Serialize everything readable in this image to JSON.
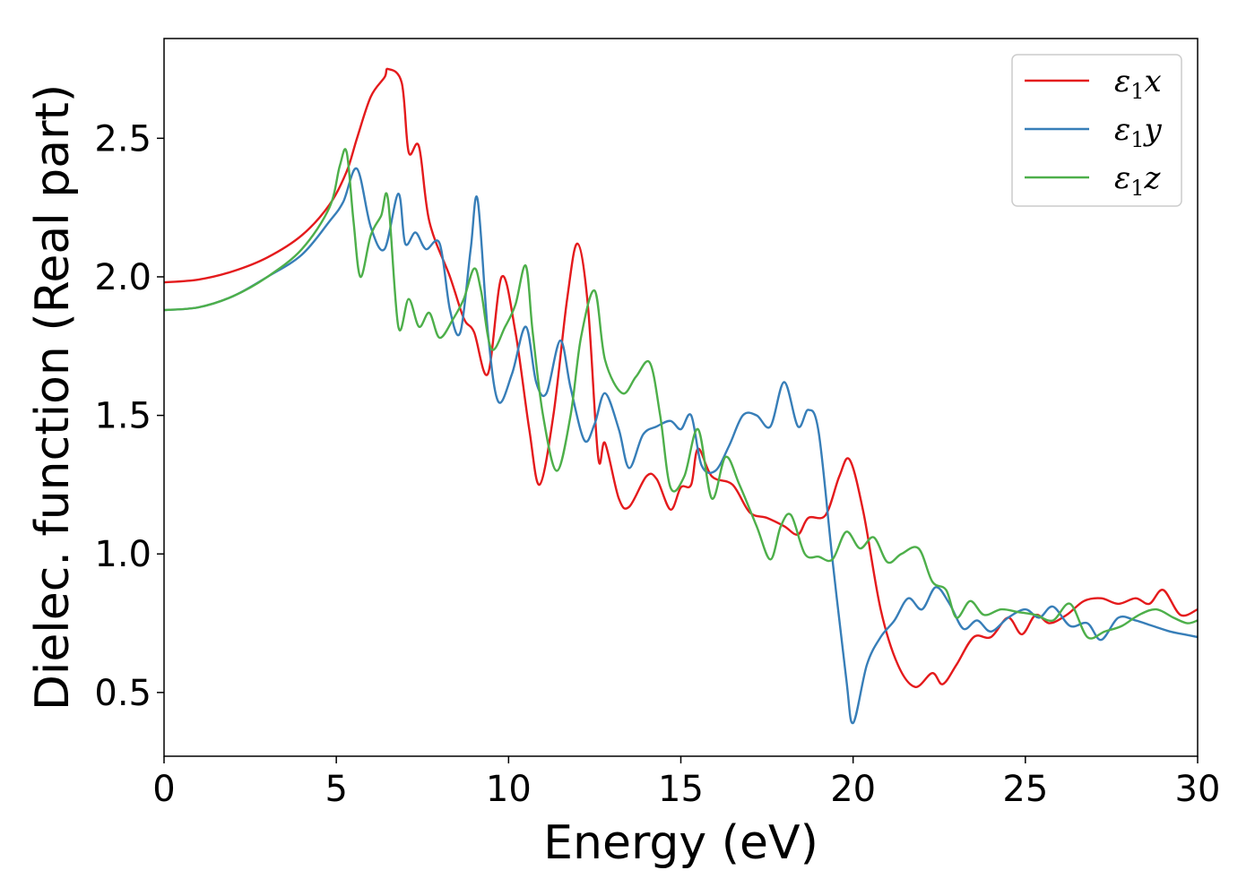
{
  "chart_data": {
    "type": "line",
    "title": "",
    "xlabel": "Energy (eV)",
    "ylabel": "Dielec. function (Real part)",
    "xlim": [
      0,
      30
    ],
    "ylim": [
      0.27,
      2.86
    ],
    "xticks": [
      0,
      5,
      10,
      15,
      20,
      25,
      30
    ],
    "yticks": [
      0.5,
      1.0,
      1.5,
      2.0,
      2.5
    ],
    "xtick_labels": [
      "0",
      "5",
      "10",
      "15",
      "20",
      "25",
      "30"
    ],
    "ytick_labels": [
      "0.5",
      "1.0",
      "1.5",
      "2.0",
      "2.5"
    ],
    "grid": false,
    "legend_position": "top-right",
    "series": [
      {
        "name": "ε1x",
        "legend": {
          "symbol": "ε",
          "sub": "1",
          "var": "x"
        },
        "color": "#e41a1c",
        "points": [
          [
            0,
            1.98
          ],
          [
            1,
            1.99
          ],
          [
            2,
            2.02
          ],
          [
            3,
            2.07
          ],
          [
            4,
            2.15
          ],
          [
            4.8,
            2.26
          ],
          [
            5.3,
            2.38
          ],
          [
            5.6,
            2.5
          ],
          [
            6,
            2.65
          ],
          [
            6.4,
            2.72
          ],
          [
            6.5,
            2.75
          ],
          [
            6.9,
            2.7
          ],
          [
            7.1,
            2.45
          ],
          [
            7.4,
            2.47
          ],
          [
            7.7,
            2.2
          ],
          [
            8.3,
            2.0
          ],
          [
            8.7,
            1.85
          ],
          [
            9.0,
            1.8
          ],
          [
            9.4,
            1.65
          ],
          [
            9.8,
            2.0
          ],
          [
            10.2,
            1.8
          ],
          [
            10.6,
            1.45
          ],
          [
            10.9,
            1.25
          ],
          [
            11.3,
            1.5
          ],
          [
            11.7,
            1.92
          ],
          [
            12.0,
            2.12
          ],
          [
            12.3,
            1.9
          ],
          [
            12.6,
            1.35
          ],
          [
            12.8,
            1.4
          ],
          [
            13.2,
            1.2
          ],
          [
            13.5,
            1.17
          ],
          [
            14.0,
            1.28
          ],
          [
            14.3,
            1.27
          ],
          [
            14.7,
            1.16
          ],
          [
            15.0,
            1.24
          ],
          [
            15.3,
            1.25
          ],
          [
            15.5,
            1.38
          ],
          [
            15.9,
            1.28
          ],
          [
            16.5,
            1.25
          ],
          [
            17.0,
            1.15
          ],
          [
            17.5,
            1.13
          ],
          [
            18.0,
            1.1
          ],
          [
            18.4,
            1.07
          ],
          [
            18.7,
            1.13
          ],
          [
            19.2,
            1.14
          ],
          [
            19.6,
            1.28
          ],
          [
            19.9,
            1.34
          ],
          [
            20.3,
            1.15
          ],
          [
            20.8,
            0.8
          ],
          [
            21.3,
            0.6
          ],
          [
            21.8,
            0.52
          ],
          [
            22.3,
            0.57
          ],
          [
            22.6,
            0.53
          ],
          [
            23.0,
            0.6
          ],
          [
            23.5,
            0.7
          ],
          [
            24.0,
            0.7
          ],
          [
            24.5,
            0.77
          ],
          [
            24.9,
            0.71
          ],
          [
            25.3,
            0.78
          ],
          [
            25.7,
            0.75
          ],
          [
            26.2,
            0.78
          ],
          [
            26.7,
            0.83
          ],
          [
            27.2,
            0.84
          ],
          [
            27.7,
            0.82
          ],
          [
            28.2,
            0.84
          ],
          [
            28.6,
            0.82
          ],
          [
            29.0,
            0.87
          ],
          [
            29.5,
            0.78
          ],
          [
            30,
            0.8
          ]
        ]
      },
      {
        "name": "ε1y",
        "legend": {
          "symbol": "ε",
          "sub": "1",
          "var": "y"
        },
        "color": "#377eb8",
        "points": [
          [
            0,
            1.88
          ],
          [
            1,
            1.89
          ],
          [
            2,
            1.93
          ],
          [
            3,
            2.0
          ],
          [
            4,
            2.08
          ],
          [
            4.8,
            2.2
          ],
          [
            5.2,
            2.27
          ],
          [
            5.6,
            2.39
          ],
          [
            6.0,
            2.18
          ],
          [
            6.4,
            2.1
          ],
          [
            6.8,
            2.3
          ],
          [
            7.0,
            2.12
          ],
          [
            7.3,
            2.16
          ],
          [
            7.6,
            2.1
          ],
          [
            8.0,
            2.12
          ],
          [
            8.3,
            1.88
          ],
          [
            8.6,
            1.8
          ],
          [
            8.9,
            2.1
          ],
          [
            9.1,
            2.28
          ],
          [
            9.4,
            1.8
          ],
          [
            9.7,
            1.55
          ],
          [
            10.1,
            1.65
          ],
          [
            10.5,
            1.82
          ],
          [
            10.8,
            1.62
          ],
          [
            11.1,
            1.58
          ],
          [
            11.5,
            1.77
          ],
          [
            11.8,
            1.6
          ],
          [
            12.2,
            1.41
          ],
          [
            12.5,
            1.47
          ],
          [
            12.8,
            1.58
          ],
          [
            13.2,
            1.45
          ],
          [
            13.5,
            1.31
          ],
          [
            13.9,
            1.43
          ],
          [
            14.3,
            1.46
          ],
          [
            14.7,
            1.48
          ],
          [
            15.0,
            1.45
          ],
          [
            15.3,
            1.5
          ],
          [
            15.6,
            1.32
          ],
          [
            16.0,
            1.3
          ],
          [
            16.4,
            1.39
          ],
          [
            16.8,
            1.5
          ],
          [
            17.2,
            1.5
          ],
          [
            17.6,
            1.46
          ],
          [
            18.0,
            1.62
          ],
          [
            18.4,
            1.46
          ],
          [
            18.7,
            1.52
          ],
          [
            19.0,
            1.44
          ],
          [
            19.4,
            0.98
          ],
          [
            19.8,
            0.55
          ],
          [
            20.0,
            0.39
          ],
          [
            20.4,
            0.6
          ],
          [
            20.8,
            0.7
          ],
          [
            21.2,
            0.76
          ],
          [
            21.6,
            0.84
          ],
          [
            22.0,
            0.8
          ],
          [
            22.4,
            0.88
          ],
          [
            22.8,
            0.82
          ],
          [
            23.2,
            0.73
          ],
          [
            23.6,
            0.76
          ],
          [
            24.0,
            0.72
          ],
          [
            24.5,
            0.77
          ],
          [
            25.0,
            0.8
          ],
          [
            25.4,
            0.77
          ],
          [
            25.8,
            0.81
          ],
          [
            26.3,
            0.74
          ],
          [
            26.8,
            0.75
          ],
          [
            27.2,
            0.69
          ],
          [
            27.7,
            0.77
          ],
          [
            28.2,
            0.76
          ],
          [
            28.7,
            0.74
          ],
          [
            29.2,
            0.72
          ],
          [
            29.6,
            0.71
          ],
          [
            30,
            0.7
          ]
        ]
      },
      {
        "name": "ε1z",
        "legend": {
          "symbol": "ε",
          "sub": "1",
          "var": "z"
        },
        "color": "#4daf4a",
        "points": [
          [
            0,
            1.88
          ],
          [
            1,
            1.89
          ],
          [
            2,
            1.93
          ],
          [
            3,
            2.0
          ],
          [
            4,
            2.1
          ],
          [
            4.8,
            2.25
          ],
          [
            5.1,
            2.4
          ],
          [
            5.3,
            2.45
          ],
          [
            5.5,
            2.2
          ],
          [
            5.7,
            2.0
          ],
          [
            6.0,
            2.15
          ],
          [
            6.3,
            2.22
          ],
          [
            6.5,
            2.28
          ],
          [
            6.8,
            1.82
          ],
          [
            7.1,
            1.92
          ],
          [
            7.4,
            1.82
          ],
          [
            7.7,
            1.87
          ],
          [
            8.0,
            1.78
          ],
          [
            8.4,
            1.85
          ],
          [
            8.7,
            1.92
          ],
          [
            9.0,
            2.03
          ],
          [
            9.2,
            1.95
          ],
          [
            9.5,
            1.74
          ],
          [
            9.9,
            1.82
          ],
          [
            10.2,
            1.9
          ],
          [
            10.5,
            2.04
          ],
          [
            10.7,
            1.8
          ],
          [
            11.0,
            1.5
          ],
          [
            11.4,
            1.3
          ],
          [
            11.8,
            1.5
          ],
          [
            12.1,
            1.78
          ],
          [
            12.5,
            1.95
          ],
          [
            12.8,
            1.7
          ],
          [
            13.3,
            1.58
          ],
          [
            13.7,
            1.64
          ],
          [
            14.1,
            1.69
          ],
          [
            14.4,
            1.5
          ],
          [
            14.7,
            1.24
          ],
          [
            15.1,
            1.28
          ],
          [
            15.5,
            1.45
          ],
          [
            15.9,
            1.2
          ],
          [
            16.3,
            1.35
          ],
          [
            16.7,
            1.25
          ],
          [
            17.2,
            1.1
          ],
          [
            17.6,
            0.98
          ],
          [
            17.9,
            1.1
          ],
          [
            18.2,
            1.14
          ],
          [
            18.6,
            1.0
          ],
          [
            19.0,
            0.99
          ],
          [
            19.4,
            0.98
          ],
          [
            19.8,
            1.08
          ],
          [
            20.2,
            1.02
          ],
          [
            20.6,
            1.06
          ],
          [
            21.0,
            0.97
          ],
          [
            21.4,
            1.0
          ],
          [
            21.9,
            1.02
          ],
          [
            22.3,
            0.9
          ],
          [
            22.7,
            0.87
          ],
          [
            23.0,
            0.77
          ],
          [
            23.4,
            0.83
          ],
          [
            23.8,
            0.78
          ],
          [
            24.3,
            0.8
          ],
          [
            24.8,
            0.79
          ],
          [
            25.3,
            0.78
          ],
          [
            25.8,
            0.76
          ],
          [
            26.3,
            0.82
          ],
          [
            26.8,
            0.7
          ],
          [
            27.3,
            0.72
          ],
          [
            27.8,
            0.74
          ],
          [
            28.3,
            0.78
          ],
          [
            28.8,
            0.8
          ],
          [
            29.3,
            0.77
          ],
          [
            29.7,
            0.75
          ],
          [
            30,
            0.76
          ]
        ]
      }
    ]
  }
}
